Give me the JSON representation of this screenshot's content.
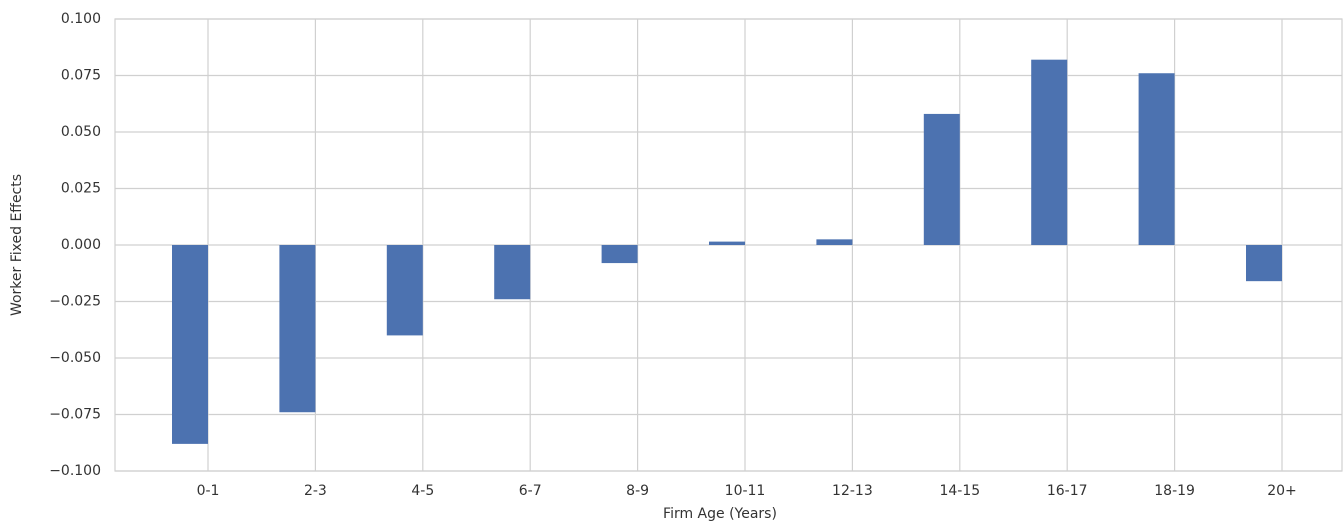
{
  "chart_data": {
    "type": "bar",
    "xlabel": "Firm Age (Years)",
    "ylabel": "Worker Fixed Effects",
    "categories": [
      "0-1",
      "2-3",
      "4-5",
      "6-7",
      "8-9",
      "10-11",
      "12-13",
      "14-15",
      "16-17",
      "18-19",
      "20+"
    ],
    "values": [
      -0.088,
      -0.074,
      -0.04,
      -0.024,
      -0.008,
      0.0015,
      0.0025,
      0.058,
      0.082,
      0.076,
      -0.016
    ],
    "color": "#4c72b0",
    "ylim": [
      -0.1,
      0.1
    ],
    "yticks": [
      {
        "value": -0.1,
        "label": "−0.100"
      },
      {
        "value": -0.075,
        "label": "−0.075"
      },
      {
        "value": -0.05,
        "label": "−0.050"
      },
      {
        "value": -0.025,
        "label": "−0.025"
      },
      {
        "value": 0,
        "label": "0.000"
      },
      {
        "value": 0.025,
        "label": "0.025"
      },
      {
        "value": 0.05,
        "label": "0.050"
      },
      {
        "value": 0.075,
        "label": "0.075"
      },
      {
        "value": 0.1,
        "label": "0.100"
      }
    ],
    "grid": true
  }
}
